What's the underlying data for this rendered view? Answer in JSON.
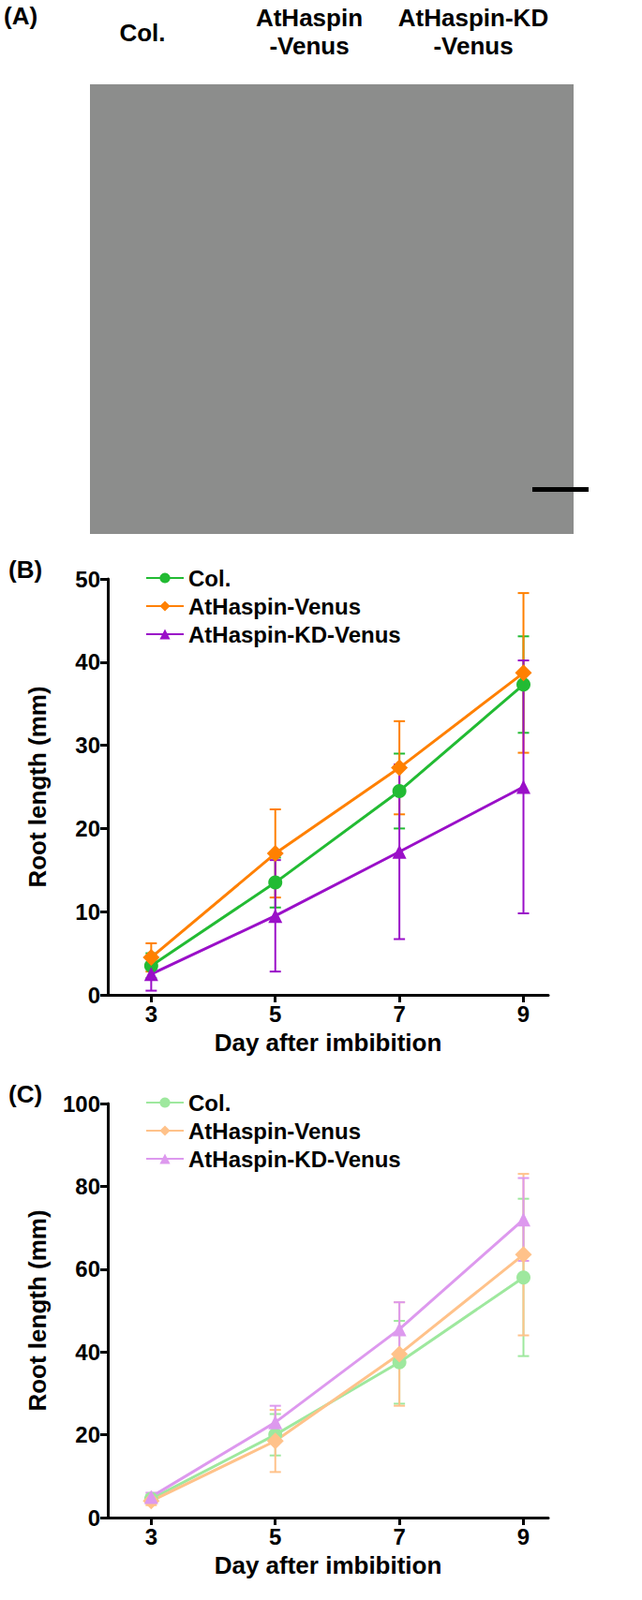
{
  "panel_a": {
    "title": "(A)",
    "labels": [
      "Col.",
      "AtHaspin-Venus",
      "AtHaspin-KD-Venus"
    ]
  },
  "chart_data": [
    {
      "type": "line",
      "title": "(B)",
      "x_label": "Day after imbibition",
      "y_label": "Root length (mm)",
      "x": [
        3,
        5,
        7,
        9
      ],
      "xlim": [
        2.3,
        9.4
      ],
      "xticks": [
        3,
        5,
        7,
        9
      ],
      "ylim": [
        0,
        50
      ],
      "yticks": [
        0,
        10,
        20,
        30,
        40,
        50
      ],
      "grid": false,
      "legend": "top-left",
      "series": [
        {
          "name": "Col.",
          "color": "#22bb33",
          "marker": "circle",
          "values": [
            3.5,
            13.5,
            24.5,
            37.3
          ],
          "errors": [
            1.5,
            3.0,
            4.5,
            5.8
          ]
        },
        {
          "name": "AtHaspin-Venus",
          "color": "#ff8000",
          "marker": "diamond",
          "values": [
            4.5,
            17.0,
            27.3,
            38.7
          ],
          "errors": [
            1.7,
            5.3,
            5.6,
            9.6
          ]
        },
        {
          "name": "AtHaspin-KD-Venus",
          "color": "#9a0fc8",
          "marker": "triangle",
          "values": [
            2.5,
            9.5,
            17.2,
            25.0
          ],
          "errors": [
            2.0,
            6.7,
            10.5,
            15.2
          ]
        }
      ]
    },
    {
      "type": "line",
      "title": "(C)",
      "x_label": "Day after imbibition",
      "y_label": "Root length (mm)",
      "x": [
        3,
        5,
        7,
        9
      ],
      "xlim": [
        2.3,
        9.4
      ],
      "xticks": [
        3,
        5,
        7,
        9
      ],
      "ylim": [
        0,
        100
      ],
      "yticks": [
        0,
        20,
        40,
        60,
        80,
        100
      ],
      "grid": false,
      "legend": "top-left",
      "series": [
        {
          "name": "Col.",
          "color": "#9ee89e",
          "marker": "circle",
          "values": [
            4.5,
            20.0,
            37.5,
            58.0
          ],
          "errors": [
            1.0,
            5.0,
            10.0,
            19.0
          ]
        },
        {
          "name": "AtHaspin-Venus",
          "color": "#ffc28a",
          "marker": "diamond",
          "values": [
            4.0,
            18.5,
            39.5,
            63.5
          ],
          "errors": [
            1.0,
            7.5,
            12.5,
            19.5
          ]
        },
        {
          "name": "AtHaspin-KD-Venus",
          "color": "#dd99ee",
          "marker": "triangle",
          "values": [
            5.0,
            23.0,
            45.5,
            72.0
          ],
          "errors": [
            1.0,
            4.0,
            6.5,
            10.0
          ]
        }
      ]
    }
  ]
}
